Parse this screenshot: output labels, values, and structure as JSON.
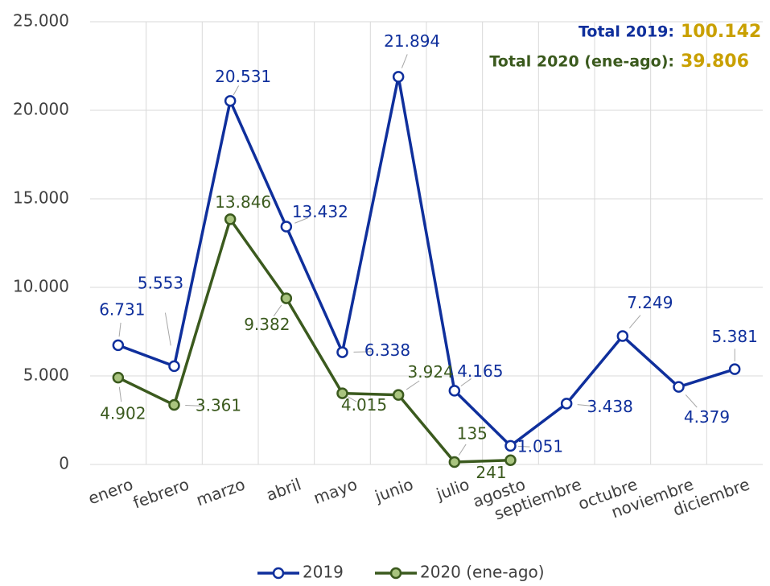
{
  "chart_data": {
    "type": "line",
    "categories": [
      "enero",
      "febrero",
      "marzo",
      "abril",
      "mayo",
      "junio",
      "julio",
      "agosto",
      "septiembre",
      "octubre",
      "noviembre",
      "diciembre"
    ],
    "series": [
      {
        "name": "2019",
        "color": "#0f2f9c",
        "marker_fill": "#ffffff",
        "values": [
          6731,
          5553,
          20531,
          13432,
          6338,
          21894,
          4165,
          1051,
          3438,
          7249,
          4379,
          5381
        ],
        "value_labels": [
          "6.731",
          "5.553",
          "20.531",
          "13.432",
          "6.338",
          "21.894",
          "4.165",
          "1.051",
          "3.438",
          "7.249",
          "4.379",
          "5.381"
        ]
      },
      {
        "name": "2020 (ene-ago)",
        "color": "#3b5a1e",
        "marker_fill": "#a9c47f",
        "values": [
          4902,
          3361,
          13846,
          9382,
          4015,
          3924,
          135,
          241,
          null,
          null,
          null,
          null
        ],
        "value_labels": [
          "4.902",
          "3.361",
          "13.846",
          "9.382",
          "4.015",
          "3.924",
          "135",
          "241",
          null,
          null,
          null,
          null
        ]
      }
    ],
    "ylim": [
      0,
      25000
    ],
    "yticks": [
      0,
      {
        "value": 5000,
        "label": "5.000"
      },
      {
        "value": 10000,
        "label": "10.000"
      },
      {
        "value": 15000,
        "label": "15.000"
      },
      {
        "value": 20000,
        "label": "20.000"
      },
      {
        "value": 25000,
        "label": "25.000"
      }
    ],
    "grid": true,
    "legend": "bottom",
    "annotations": [
      {
        "label": "Total 2019:",
        "value": "100.142"
      },
      {
        "label": "Total 2020 (ene-ago):",
        "value": "39.806"
      }
    ]
  }
}
